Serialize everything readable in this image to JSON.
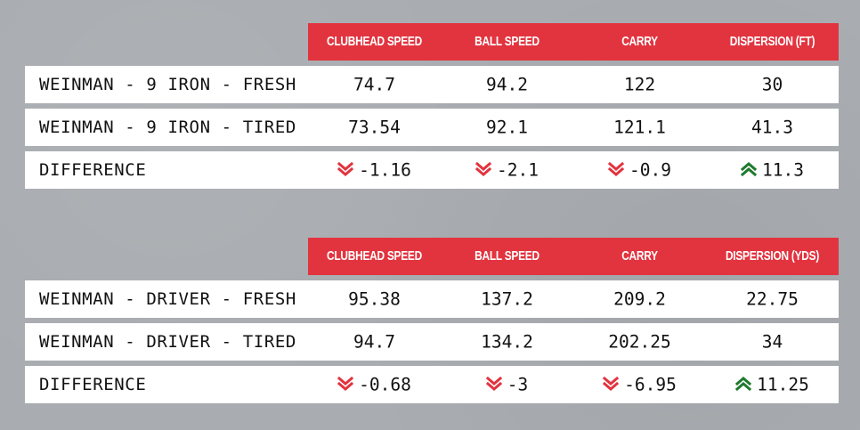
{
  "colors": {
    "background": "#a9adb1",
    "header_band": "#e2343f",
    "row_bg": "#ffffff",
    "down_arrow": "#e2343f",
    "up_arrow": "#1f7a2e"
  },
  "tables": [
    {
      "headers": [
        "CLUBHEAD SPEED",
        "BALL SPEED",
        "CARRY",
        "DISPERSION (FT)"
      ],
      "rows": [
        {
          "label": "WEINMAN - 9 IRON - FRESH",
          "values": [
            "74.7",
            "94.2",
            "122",
            "30"
          ]
        },
        {
          "label": "WEINMAN - 9 IRON - TIRED",
          "values": [
            "73.54",
            "92.1",
            "121.1",
            "41.3"
          ]
        }
      ],
      "difference": {
        "label": "DIFFERENCE",
        "values": [
          "-1.16",
          "-2.1",
          "-0.9",
          "11.3"
        ],
        "directions": [
          "down",
          "down",
          "down",
          "up"
        ]
      }
    },
    {
      "headers": [
        "CLUBHEAD SPEED",
        "BALL SPEED",
        "CARRY",
        "DISPERSION (YDS)"
      ],
      "rows": [
        {
          "label": "WEINMAN - DRIVER - FRESH",
          "values": [
            "95.38",
            "137.2",
            "209.2",
            "22.75"
          ]
        },
        {
          "label": "WEINMAN - DRIVER - TIRED",
          "values": [
            "94.7",
            "134.2",
            "202.25",
            "34"
          ]
        }
      ],
      "difference": {
        "label": "DIFFERENCE",
        "values": [
          "-0.68",
          "-3",
          "-6.95",
          "11.25"
        ],
        "directions": [
          "down",
          "down",
          "down",
          "up"
        ]
      }
    }
  ]
}
